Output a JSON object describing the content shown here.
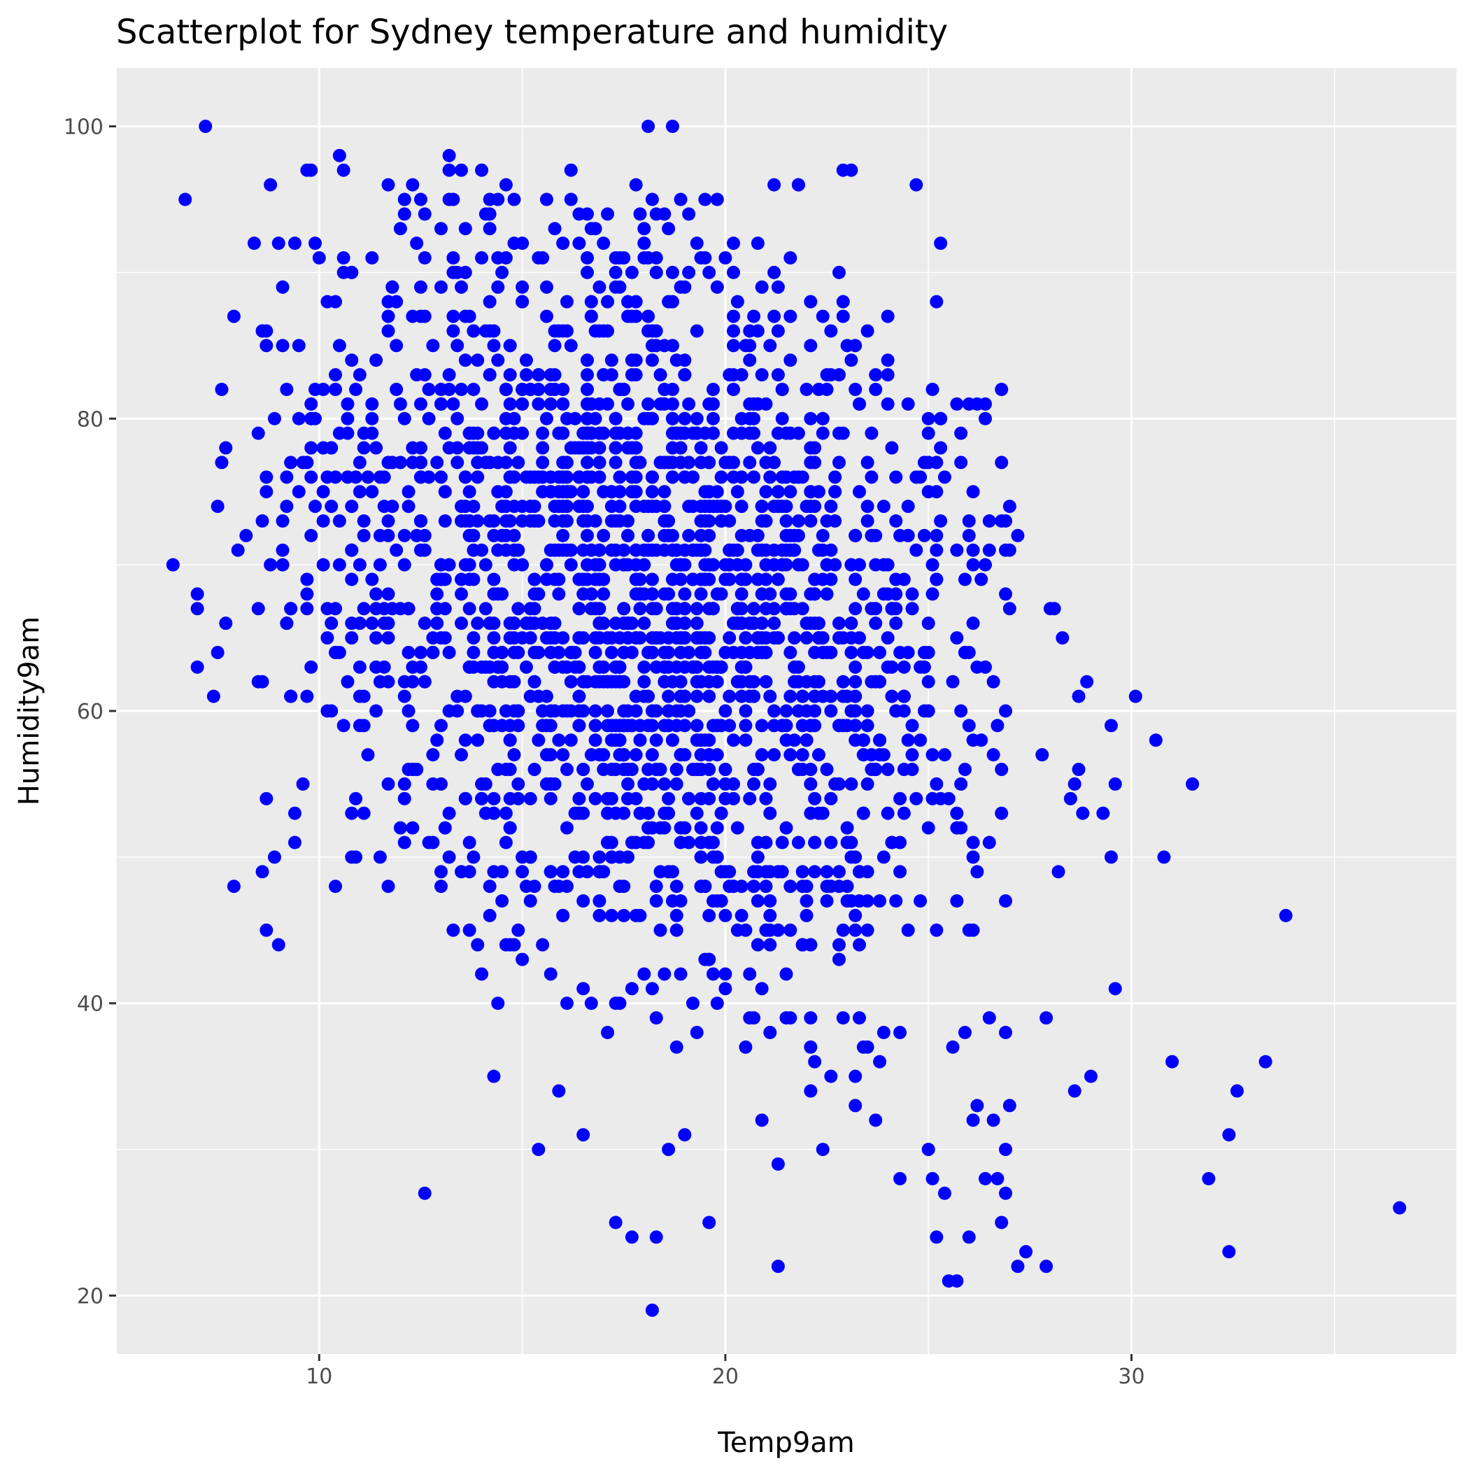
{
  "chart_data": {
    "type": "scatter",
    "title": "Scatterplot for Sydney temperature and humidity",
    "xlabel": "Temp9am",
    "ylabel": "Humidity9am",
    "xlim": [
      5,
      38
    ],
    "ylim": [
      16,
      104
    ],
    "x_ticks": [
      10,
      20,
      30
    ],
    "y_ticks": [
      20,
      40,
      60,
      80,
      100
    ],
    "grid": true,
    "point_color": "#0000ff",
    "panel_color": "#ebebeb",
    "grid_color": "#ffffff",
    "notable_points": [
      {
        "x": 6.4,
        "y": 70
      },
      {
        "x": 6.7,
        "y": 95
      },
      {
        "x": 7.0,
        "y": 68
      },
      {
        "x": 7.0,
        "y": 67
      },
      {
        "x": 7.0,
        "y": 63
      },
      {
        "x": 7.2,
        "y": 100
      },
      {
        "x": 7.4,
        "y": 61
      },
      {
        "x": 7.5,
        "y": 74
      },
      {
        "x": 7.5,
        "y": 64
      },
      {
        "x": 7.6,
        "y": 82
      },
      {
        "x": 7.6,
        "y": 77
      },
      {
        "x": 7.7,
        "y": 78
      },
      {
        "x": 7.7,
        "y": 66
      },
      {
        "x": 7.9,
        "y": 48
      },
      {
        "x": 7.9,
        "y": 87
      },
      {
        "x": 8.0,
        "y": 71
      },
      {
        "x": 8.2,
        "y": 72
      },
      {
        "x": 8.4,
        "y": 92
      },
      {
        "x": 8.6,
        "y": 86
      },
      {
        "x": 8.6,
        "y": 49
      },
      {
        "x": 8.5,
        "y": 79
      },
      {
        "x": 8.8,
        "y": 96
      },
      {
        "x": 8.9,
        "y": 50
      },
      {
        "x": 18.1,
        "y": 100
      },
      {
        "x": 18.7,
        "y": 100
      },
      {
        "x": 13.2,
        "y": 98
      },
      {
        "x": 18.2,
        "y": 19
      },
      {
        "x": 17.7,
        "y": 24
      },
      {
        "x": 18.3,
        "y": 24
      },
      {
        "x": 19.6,
        "y": 25
      },
      {
        "x": 21.3,
        "y": 22
      },
      {
        "x": 25.5,
        "y": 21
      },
      {
        "x": 25.7,
        "y": 21
      },
      {
        "x": 27.2,
        "y": 22
      },
      {
        "x": 27.9,
        "y": 22
      },
      {
        "x": 27.4,
        "y": 23
      },
      {
        "x": 25.2,
        "y": 24
      },
      {
        "x": 26.0,
        "y": 24
      },
      {
        "x": 26.8,
        "y": 25
      },
      {
        "x": 25.4,
        "y": 27
      },
      {
        "x": 26.4,
        "y": 28
      },
      {
        "x": 27.2,
        "y": 72
      },
      {
        "x": 27.8,
        "y": 57
      },
      {
        "x": 28.0,
        "y": 67
      },
      {
        "x": 28.1,
        "y": 67
      },
      {
        "x": 28.2,
        "y": 49
      },
      {
        "x": 27.9,
        "y": 39
      },
      {
        "x": 28.3,
        "y": 65
      },
      {
        "x": 28.5,
        "y": 54
      },
      {
        "x": 28.6,
        "y": 55
      },
      {
        "x": 28.6,
        "y": 34
      },
      {
        "x": 28.7,
        "y": 56
      },
      {
        "x": 28.7,
        "y": 61
      },
      {
        "x": 28.8,
        "y": 53
      },
      {
        "x": 28.9,
        "y": 62
      },
      {
        "x": 29.0,
        "y": 35
      },
      {
        "x": 29.3,
        "y": 53
      },
      {
        "x": 29.5,
        "y": 50
      },
      {
        "x": 29.5,
        "y": 59
      },
      {
        "x": 29.6,
        "y": 55
      },
      {
        "x": 29.6,
        "y": 41
      },
      {
        "x": 30.1,
        "y": 61
      },
      {
        "x": 30.6,
        "y": 58
      },
      {
        "x": 30.8,
        "y": 50
      },
      {
        "x": 31.0,
        "y": 36
      },
      {
        "x": 31.5,
        "y": 55
      },
      {
        "x": 31.9,
        "y": 28
      },
      {
        "x": 32.4,
        "y": 31
      },
      {
        "x": 32.4,
        "y": 23
      },
      {
        "x": 32.6,
        "y": 34
      },
      {
        "x": 33.3,
        "y": 36
      },
      {
        "x": 33.8,
        "y": 46
      },
      {
        "x": 36.6,
        "y": 26
      }
    ],
    "cloud": {
      "count": 2200,
      "x_center": 18.0,
      "x_sd": 4.8,
      "y_center": 68.0,
      "y_sd": 13.5,
      "slope": -0.9,
      "x_range": [
        8.5,
        27.0
      ],
      "y_range": [
        19,
        98
      ],
      "x_step": 0.1,
      "y_step": 1
    }
  }
}
